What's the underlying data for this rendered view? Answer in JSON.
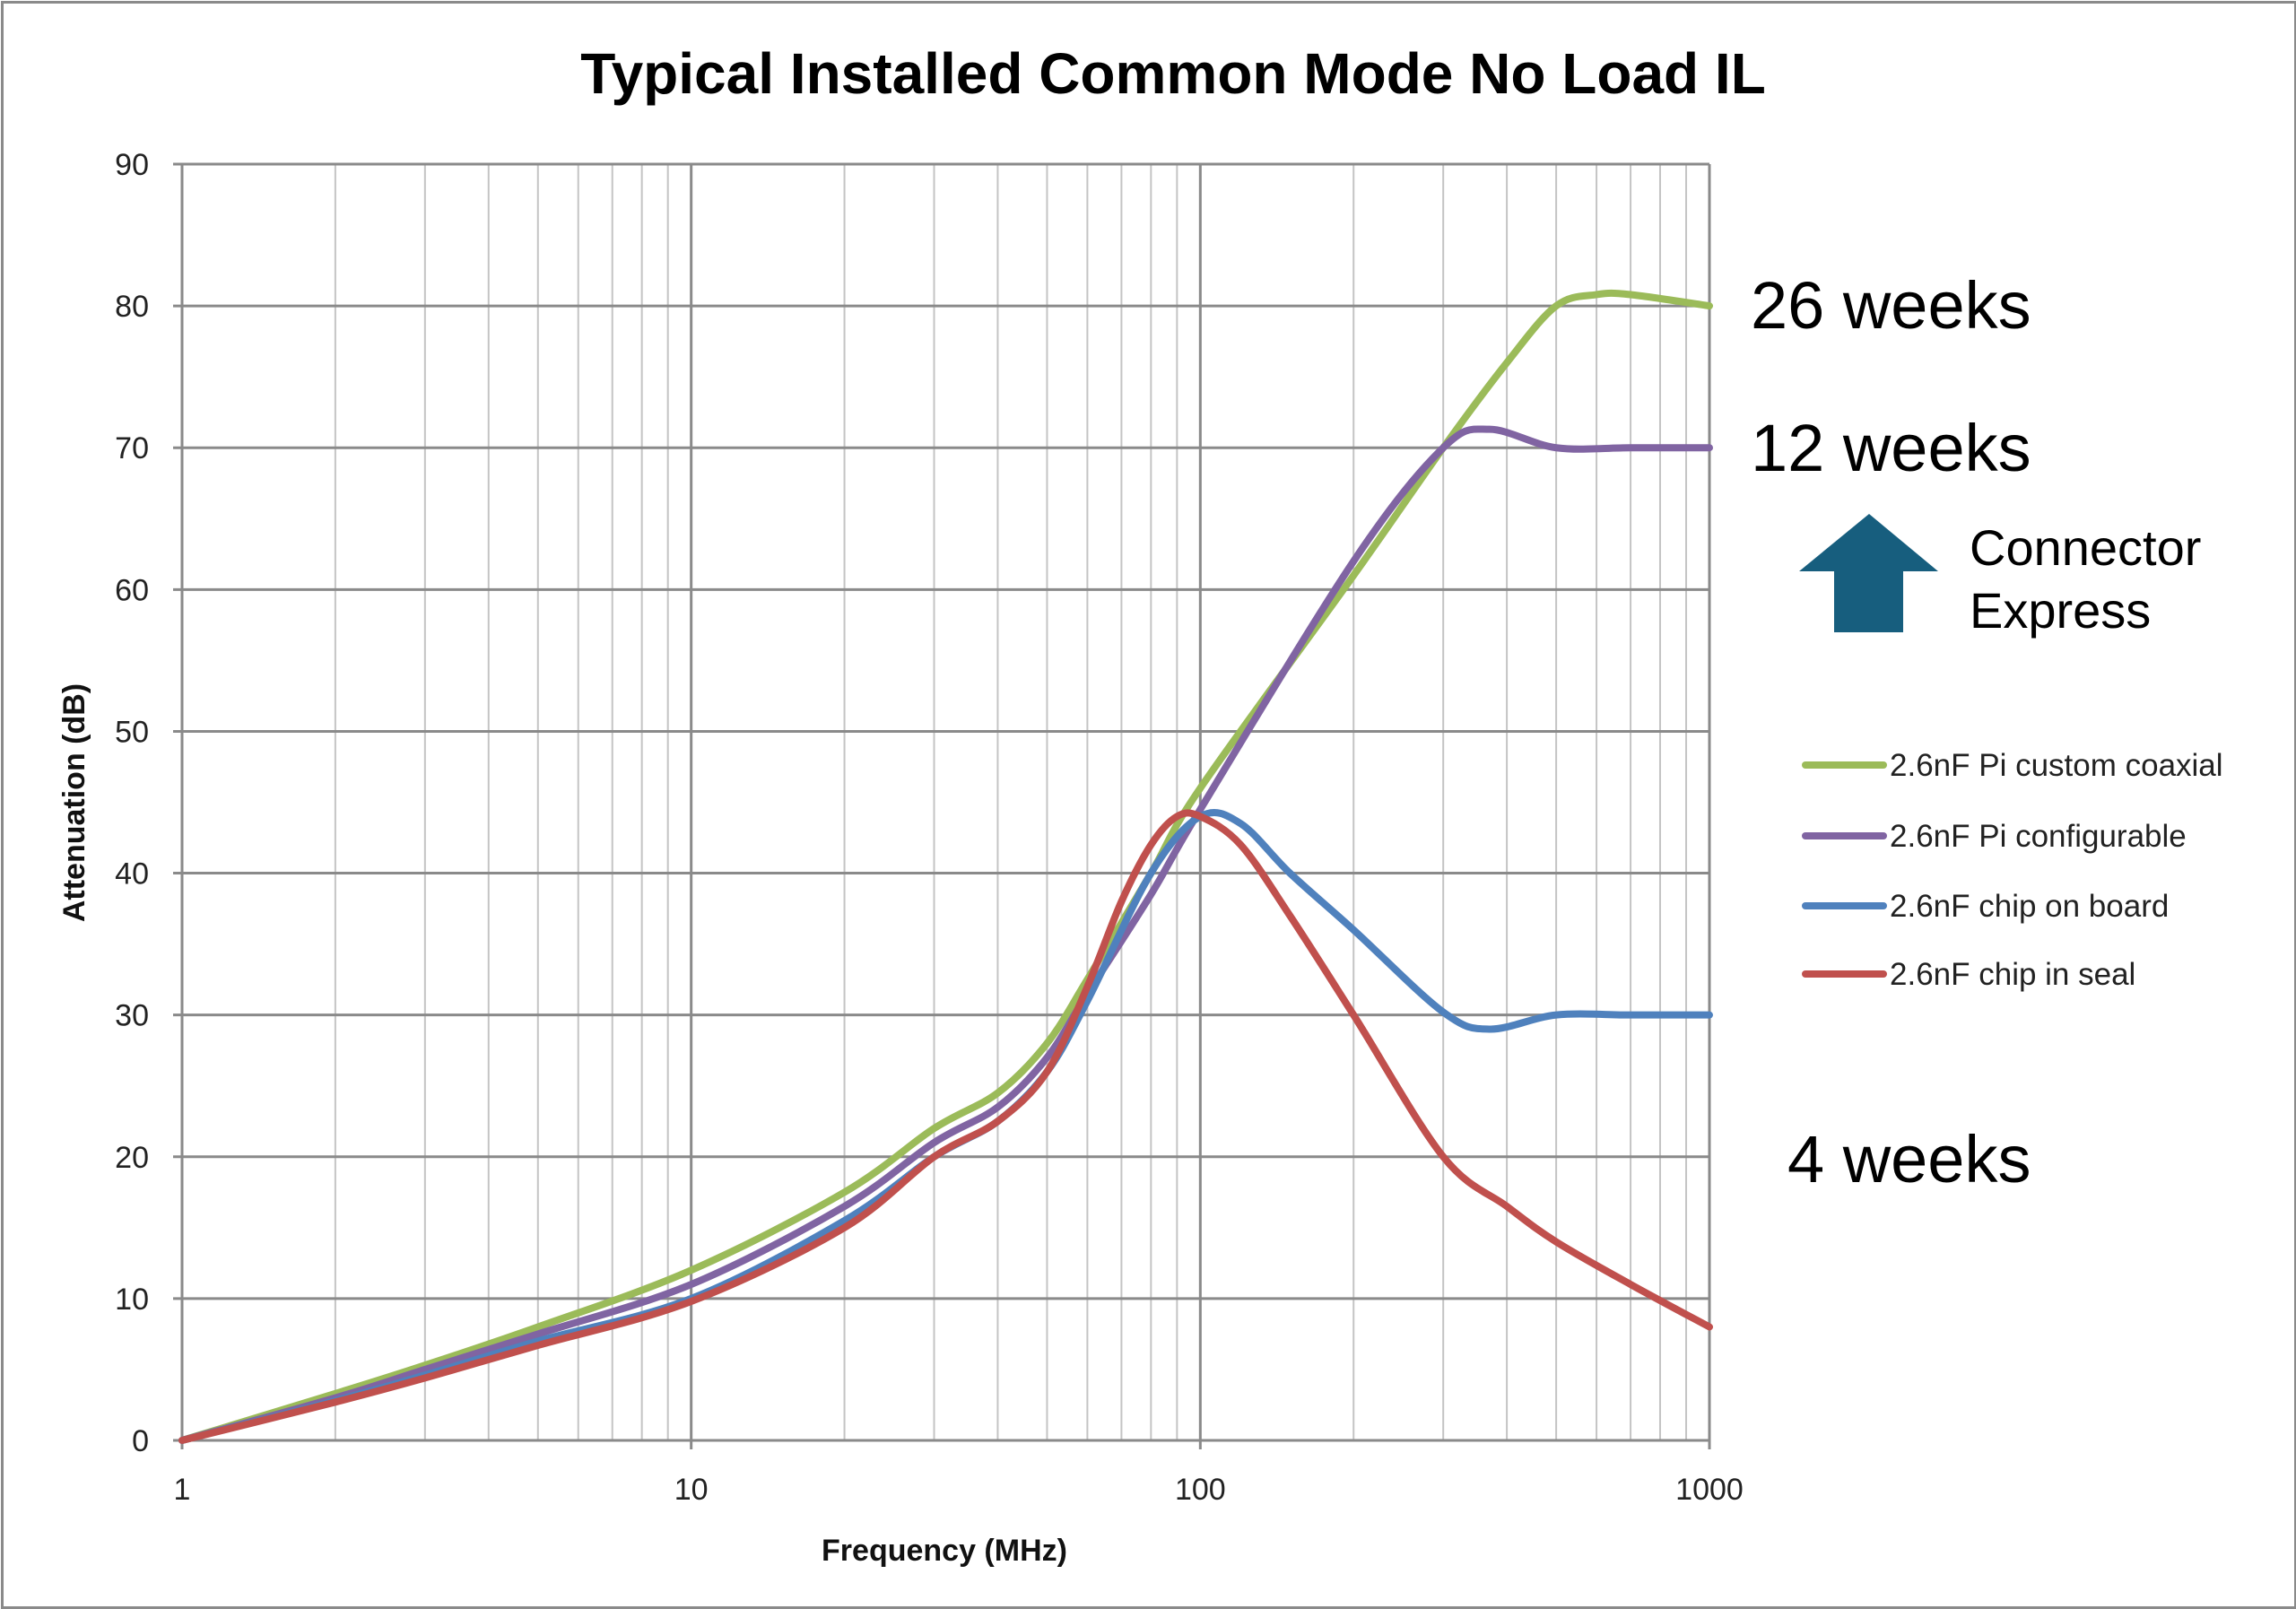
{
  "chart_data": {
    "type": "line",
    "title": "Typical Installed Common Mode No Load IL",
    "xlabel": "Frequency (MHz)",
    "ylabel": "Attenuation (dB)",
    "xscale": "log",
    "xlim": [
      1,
      1000
    ],
    "ylim": [
      0,
      90
    ],
    "xticks": [
      "1",
      "10",
      "100",
      "1000"
    ],
    "yticks": [
      "0",
      "10",
      "20",
      "30",
      "40",
      "50",
      "60",
      "70",
      "80",
      "90"
    ],
    "grid": true,
    "legend_position": "right",
    "series": [
      {
        "name": "2.6nF Pi custom coaxial",
        "color": "#9BBB59",
        "x": [
          1,
          2,
          3,
          5,
          10,
          20,
          30,
          40,
          50,
          60,
          80,
          100,
          200,
          300,
          400,
          500,
          600,
          700,
          1000
        ],
        "y": [
          0,
          3.3,
          5.3,
          8,
          12,
          17.5,
          22,
          24.5,
          28,
          32.5,
          40,
          46,
          61,
          70,
          76,
          80,
          80.8,
          80.8,
          80
        ]
      },
      {
        "name": "2.6nF Pi configurable",
        "color": "#8064A2",
        "x": [
          1,
          2,
          3,
          5,
          10,
          20,
          30,
          40,
          50,
          60,
          80,
          100,
          200,
          300,
          370,
          500,
          700,
          1000
        ],
        "y": [
          0,
          3,
          5,
          7.5,
          11,
          16.5,
          21,
          23.5,
          27,
          31.5,
          38.5,
          44.5,
          62,
          70,
          71.3,
          70,
          70,
          70
        ]
      },
      {
        "name": "2.6nF chip on board",
        "color": "#4F81BD",
        "x": [
          1,
          2,
          3,
          5,
          10,
          20,
          30,
          40,
          50,
          60,
          80,
          100,
          120,
          150,
          200,
          300,
          370,
          500,
          700,
          1000
        ],
        "y": [
          0,
          2.8,
          4.6,
          7,
          10,
          15.5,
          20,
          22.5,
          26,
          31,
          40,
          44,
          43.5,
          40,
          36,
          30.2,
          29,
          30,
          30,
          30
        ]
      },
      {
        "name": "2.6nF chip in seal",
        "color": "#C0504D",
        "x": [
          1,
          2,
          3,
          5,
          10,
          20,
          30,
          40,
          50,
          60,
          70,
          80,
          90,
          100,
          120,
          150,
          200,
          300,
          400,
          500,
          700,
          1000
        ],
        "y": [
          0,
          2.7,
          4.4,
          6.7,
          9.8,
          15,
          20,
          22.5,
          26,
          32,
          38,
          42,
          44,
          44,
          42,
          37,
          30,
          20,
          16.5,
          14,
          11,
          8
        ]
      }
    ]
  },
  "annotations": {
    "label_26": "26 weeks",
    "label_12": "12 weeks",
    "label_4": "4 weeks",
    "connector_line1": "Connector",
    "connector_line2": "Express",
    "arrow_icon": "up-arrow",
    "arrow_color": "#175E7E"
  }
}
